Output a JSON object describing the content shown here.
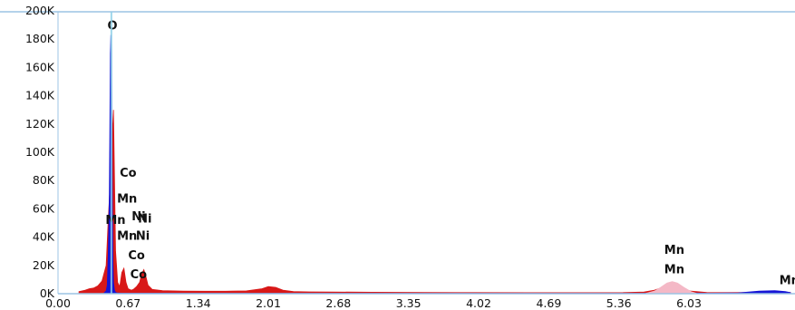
{
  "chart_data": {
    "type": "area",
    "title": "",
    "xlabel": "",
    "ylabel": "",
    "xlim": [
      0.0,
      7.0
    ],
    "ylim": [
      0,
      200000
    ],
    "x_ticks": [
      {
        "value": 0.0,
        "label": "0.00"
      },
      {
        "value": 0.67,
        "label": "0.67"
      },
      {
        "value": 1.34,
        "label": "1.34"
      },
      {
        "value": 2.01,
        "label": "2.01"
      },
      {
        "value": 2.68,
        "label": "2.68"
      },
      {
        "value": 3.35,
        "label": "3.35"
      },
      {
        "value": 4.02,
        "label": "4.02"
      },
      {
        "value": 4.69,
        "label": "4.69"
      },
      {
        "value": 5.36,
        "label": "5.36"
      },
      {
        "value": 6.03,
        "label": "6.03"
      }
    ],
    "y_ticks": [
      {
        "value": 0,
        "label": "0K"
      },
      {
        "value": 20000,
        "label": "20K"
      },
      {
        "value": 40000,
        "label": "40K"
      },
      {
        "value": 60000,
        "label": "60K"
      },
      {
        "value": 80000,
        "label": "80K"
      },
      {
        "value": 100000,
        "label": "100K"
      },
      {
        "value": 120000,
        "label": "120K"
      },
      {
        "value": 140000,
        "label": "140K"
      },
      {
        "value": 160000,
        "label": "160K"
      },
      {
        "value": 180000,
        "label": "180K"
      },
      {
        "value": 200000,
        "label": "200K"
      }
    ],
    "series": [
      {
        "color": "#d81818",
        "x": [
          0.2,
          0.26,
          0.3,
          0.34,
          0.38,
          0.42,
          0.46,
          0.48,
          0.5,
          0.51,
          0.52,
          0.53,
          0.55,
          0.57,
          0.59,
          0.61,
          0.63,
          0.65,
          0.67,
          0.7,
          0.72,
          0.75,
          0.78,
          0.8,
          0.82,
          0.84,
          0.86,
          0.9,
          1.0,
          1.2,
          1.4,
          1.6,
          1.8,
          1.95,
          2.01,
          2.08,
          2.15,
          2.25,
          2.4,
          2.6,
          3.0,
          3.5,
          4.0,
          4.5,
          5.0,
          5.4,
          5.6,
          5.7,
          5.8,
          5.88,
          5.95,
          6.05,
          6.2,
          6.4,
          6.6,
          6.8,
          7.0
        ],
        "y": [
          1500,
          2500,
          3500,
          4000,
          5500,
          9000,
          20000,
          52000,
          80000,
          95000,
          115000,
          130000,
          30000,
          8000,
          5000,
          15000,
          18000,
          8000,
          3500,
          2500,
          3000,
          5000,
          8000,
          14000,
          17000,
          12000,
          6000,
          3000,
          2200,
          1800,
          1700,
          1700,
          2000,
          3500,
          5000,
          4500,
          2500,
          1500,
          1300,
          1200,
          1000,
          900,
          800,
          700,
          700,
          800,
          1200,
          2500,
          5000,
          5500,
          4000,
          1800,
          900,
          800,
          900,
          1200,
          900
        ]
      },
      {
        "color": "#1515d6",
        "x": [
          0.44,
          0.46,
          0.47,
          0.48,
          0.485,
          0.49,
          0.495,
          0.5,
          0.505,
          0.51,
          0.515,
          0.52,
          0.525,
          0.53,
          0.54,
          0.55,
          0.57,
          0.6,
          0.65,
          0.7,
          0.8,
          0.9,
          1.2,
          2.0,
          3.0,
          4.0,
          5.0,
          5.6,
          5.75,
          5.85,
          5.95,
          6.05,
          6.2,
          6.5,
          6.7,
          6.85,
          6.95,
          7.0
        ],
        "y": [
          500,
          2000,
          6000,
          28000,
          48000,
          70000,
          110000,
          170000,
          183000,
          172000,
          125000,
          60000,
          22000,
          8000,
          2500,
          900,
          500,
          400,
          300,
          300,
          300,
          300,
          200,
          200,
          200,
          200,
          200,
          300,
          800,
          1200,
          1000,
          500,
          300,
          600,
          1800,
          2200,
          1500,
          800
        ]
      },
      {
        "color": "#f4b8c6",
        "x": [
          5.62,
          5.7,
          5.76,
          5.82,
          5.87,
          5.92,
          5.98,
          6.05,
          6.1
        ],
        "y": [
          300,
          1800,
          4500,
          7500,
          8500,
          7500,
          4500,
          1500,
          300
        ]
      }
    ],
    "annotations": [
      {
        "text": "O",
        "x": 0.52,
        "y": 190000
      },
      {
        "text": "Co",
        "x": 0.67,
        "y": 86000
      },
      {
        "text": "Mn",
        "x": 0.66,
        "y": 67500
      },
      {
        "text": "Ni",
        "x": 0.77,
        "y": 55000
      },
      {
        "text": "Ni",
        "x": 0.83,
        "y": 53500
      },
      {
        "text": "Mn",
        "x": 0.55,
        "y": 52500
      },
      {
        "text": "Mn",
        "x": 0.66,
        "y": 41500
      },
      {
        "text": "Ni",
        "x": 0.81,
        "y": 41500
      },
      {
        "text": "Co",
        "x": 0.75,
        "y": 27500
      },
      {
        "text": "Co",
        "x": 0.77,
        "y": 14000
      },
      {
        "text": "Mn",
        "x": 5.89,
        "y": 31500
      },
      {
        "text": "Mn",
        "x": 5.89,
        "y": 17500
      },
      {
        "text": "Mn",
        "x": 6.99,
        "y": 10000
      }
    ],
    "cursor_x": 0.51,
    "grid": false,
    "legend": "none"
  }
}
